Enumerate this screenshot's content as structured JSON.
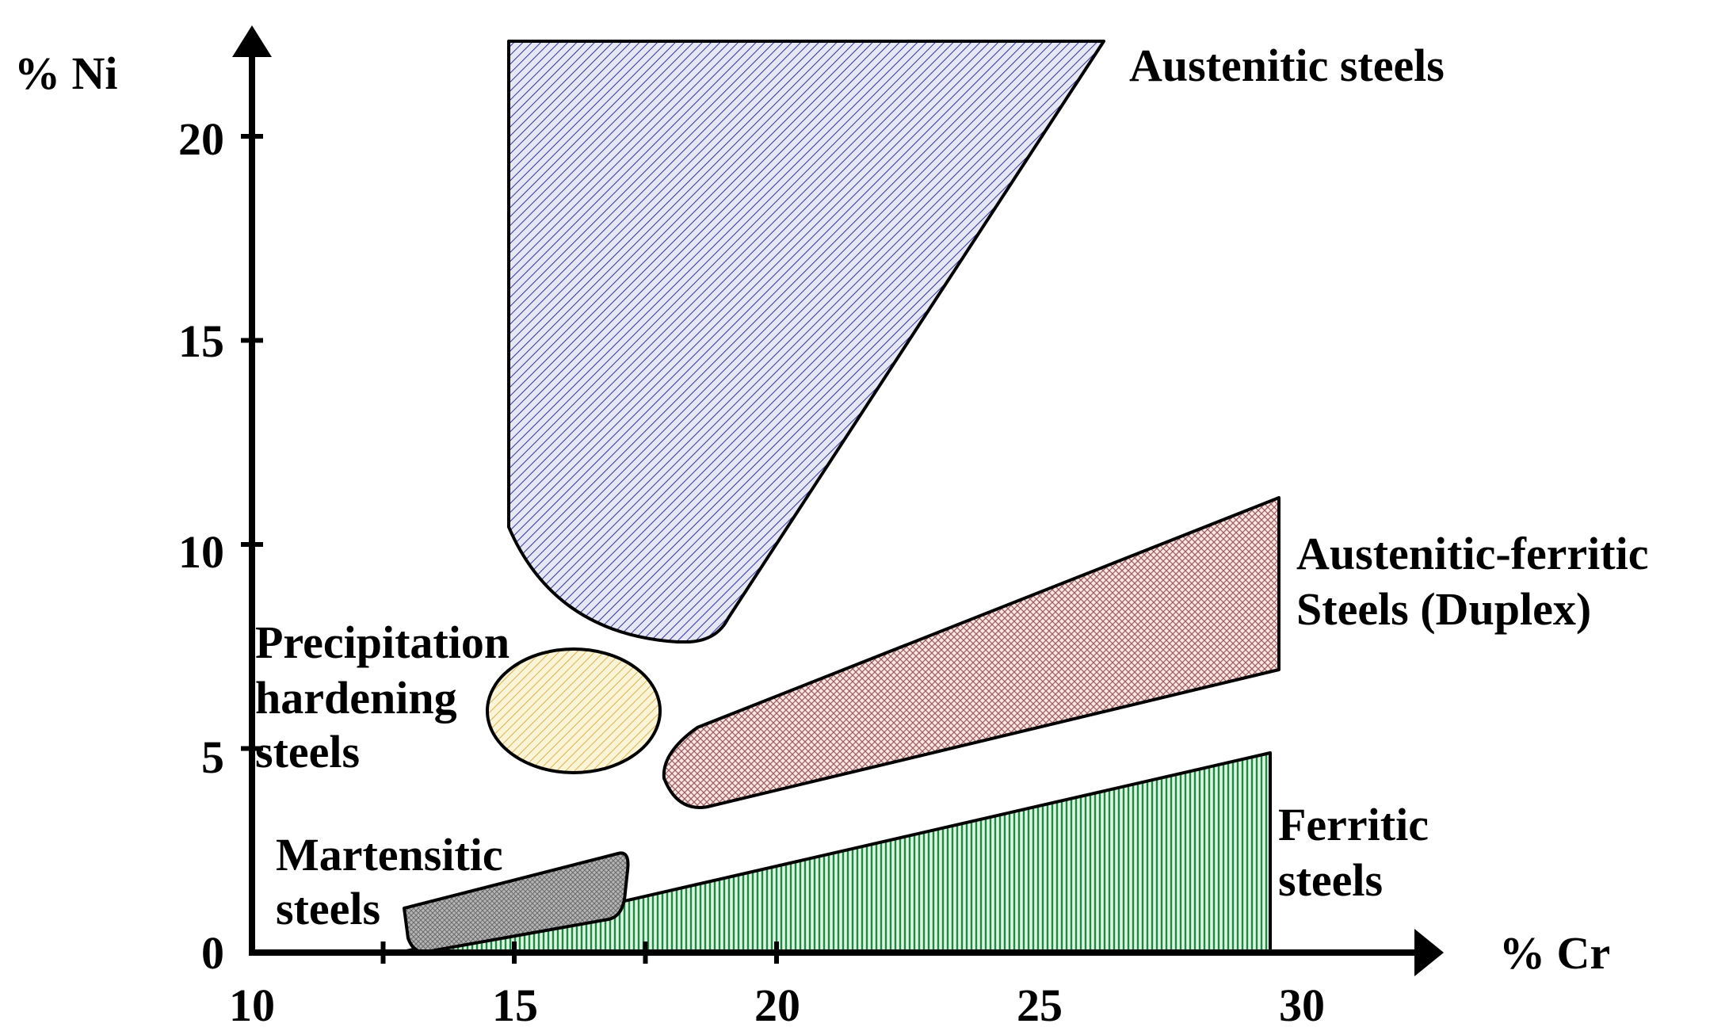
{
  "axes": {
    "x_label": "% Cr",
    "y_label": "% Ni",
    "x_ticks": [
      "10",
      "15",
      "20",
      "25",
      "30"
    ],
    "y_ticks": [
      "0",
      "5",
      "10",
      "15",
      "20"
    ],
    "x_range": [
      10,
      30
    ],
    "y_range": [
      0,
      20
    ]
  },
  "regions": [
    {
      "id": "austenitic",
      "label_lines": [
        "Austenitic steels"
      ],
      "color": "#3b3fa8",
      "fill": "hatched"
    },
    {
      "id": "duplex",
      "label_lines": [
        "Austenitic-ferritic",
        "Steels (Duplex)"
      ],
      "color": "#b07a7a",
      "fill": "cross-hatched"
    },
    {
      "id": "precipitation",
      "label_lines": [
        "Precipitation",
        "hardening",
        "steels"
      ],
      "color": "#e3c56a",
      "fill": "hatched"
    },
    {
      "id": "ferritic",
      "label_lines": [
        "Ferritic",
        "steels"
      ],
      "color": "#1f9a48",
      "fill": "vertical-lines"
    },
    {
      "id": "martensitic",
      "label_lines": [
        "Martensitic",
        "steels"
      ],
      "color": "#8f8f8f",
      "fill": "cross-hatched"
    }
  ]
}
